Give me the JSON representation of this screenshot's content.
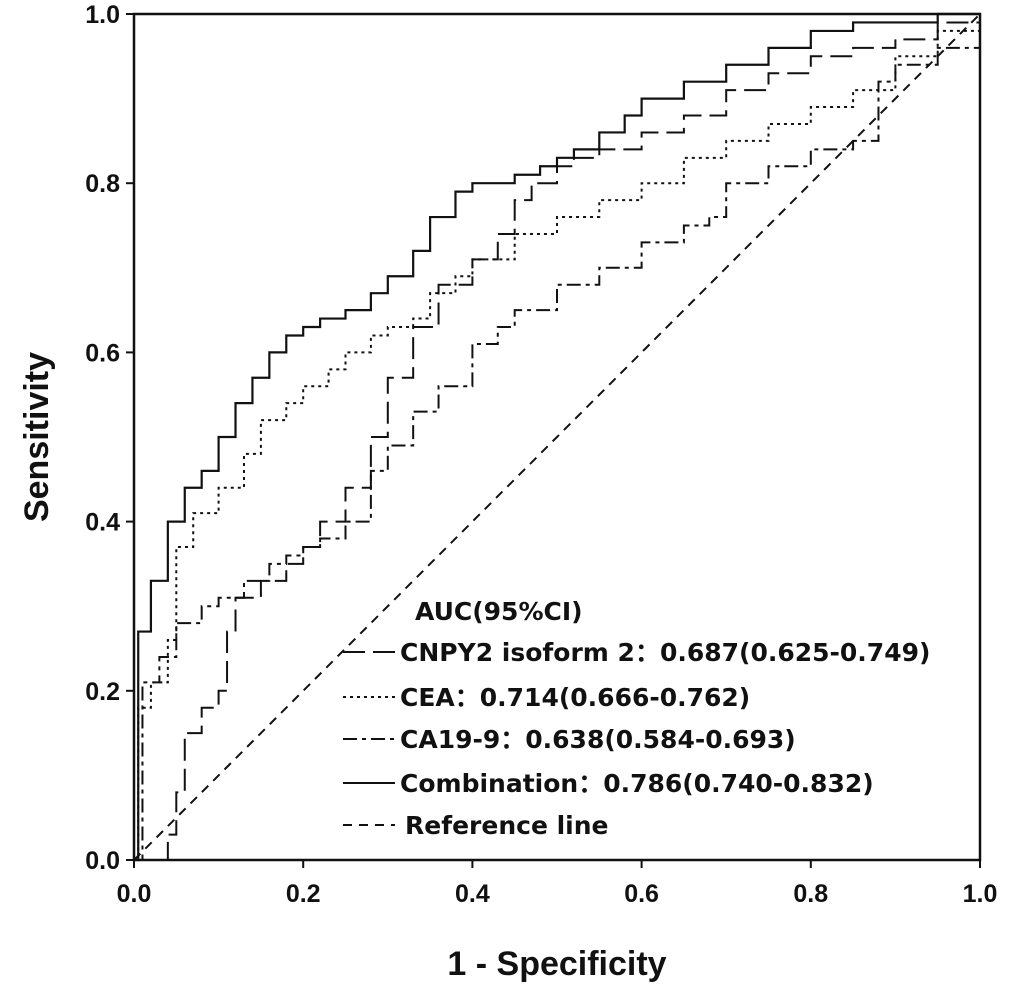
{
  "chart_data": {
    "type": "line",
    "title": "",
    "xlabel": "1 - Specificity",
    "ylabel": "Sensitivity",
    "xlim": [
      0,
      1
    ],
    "ylim": [
      0,
      1
    ],
    "xticks": [
      "0.0",
      "0.2",
      "0.4",
      "0.6",
      "0.8",
      "1.0"
    ],
    "yticks": [
      "0.0",
      "0.2",
      "0.4",
      "0.6",
      "0.8",
      "1.0"
    ],
    "legend": {
      "title": "AUC(95%CI)",
      "placement": "bottom-right",
      "entries": [
        {
          "name": "CNPY2 isoform 2",
          "text": "CNPY2 isoform 2：0.687(0.625-0.749)",
          "style": "long-dash"
        },
        {
          "name": "CEA",
          "text": "CEA：0.714(0.666-0.762)",
          "style": "dotted"
        },
        {
          "name": "CA19-9",
          "text": "CA19-9：0.638(0.584-0.693)",
          "style": "dash-dot"
        },
        {
          "name": "Combination",
          "text": "Combination：0.786(0.740-0.832)",
          "style": "solid"
        },
        {
          "name": "Reference line",
          "text": "Reference line",
          "style": "short-dash"
        }
      ]
    },
    "series": [
      {
        "name": "CNPY2 isoform 2",
        "auc": 0.687,
        "ci": [
          0.625,
          0.749
        ],
        "style": "long-dash",
        "x": [
          0,
          0.04,
          0.05,
          0.06,
          0.08,
          0.1,
          0.11,
          0.12,
          0.15,
          0.18,
          0.2,
          0.22,
          0.25,
          0.28,
          0.3,
          0.33,
          0.36,
          0.4,
          0.43,
          0.45,
          0.47,
          0.5,
          0.52,
          0.55,
          0.6,
          0.65,
          0.7,
          0.75,
          0.8,
          0.85,
          0.9,
          0.95,
          1.0
        ],
        "y": [
          0,
          0.03,
          0.08,
          0.15,
          0.18,
          0.2,
          0.27,
          0.31,
          0.33,
          0.35,
          0.37,
          0.4,
          0.44,
          0.5,
          0.57,
          0.63,
          0.68,
          0.71,
          0.74,
          0.78,
          0.8,
          0.82,
          0.83,
          0.84,
          0.86,
          0.88,
          0.91,
          0.93,
          0.95,
          0.96,
          0.97,
          0.99,
          1.0
        ]
      },
      {
        "name": "CEA",
        "auc": 0.714,
        "ci": [
          0.666,
          0.762
        ],
        "style": "dotted",
        "x": [
          0,
          0.005,
          0.02,
          0.04,
          0.05,
          0.07,
          0.1,
          0.13,
          0.15,
          0.18,
          0.2,
          0.23,
          0.25,
          0.28,
          0.3,
          0.33,
          0.35,
          0.38,
          0.4,
          0.45,
          0.5,
          0.55,
          0.6,
          0.65,
          0.7,
          0.75,
          0.8,
          0.85,
          0.9,
          0.95,
          1.0
        ],
        "y": [
          0,
          0.18,
          0.21,
          0.26,
          0.37,
          0.41,
          0.44,
          0.48,
          0.52,
          0.54,
          0.56,
          0.58,
          0.6,
          0.62,
          0.63,
          0.64,
          0.67,
          0.69,
          0.71,
          0.74,
          0.76,
          0.78,
          0.8,
          0.83,
          0.85,
          0.87,
          0.89,
          0.91,
          0.95,
          0.98,
          1.0
        ]
      },
      {
        "name": "CA19-9",
        "auc": 0.638,
        "ci": [
          0.584,
          0.693
        ],
        "style": "dash-dot",
        "x": [
          0,
          0.01,
          0.03,
          0.05,
          0.08,
          0.1,
          0.13,
          0.16,
          0.18,
          0.2,
          0.22,
          0.25,
          0.28,
          0.3,
          0.33,
          0.36,
          0.4,
          0.43,
          0.45,
          0.5,
          0.55,
          0.6,
          0.65,
          0.68,
          0.7,
          0.75,
          0.8,
          0.85,
          0.88,
          0.9,
          0.95,
          1.0
        ],
        "y": [
          0,
          0.21,
          0.24,
          0.28,
          0.3,
          0.31,
          0.33,
          0.35,
          0.36,
          0.37,
          0.38,
          0.4,
          0.46,
          0.49,
          0.53,
          0.56,
          0.61,
          0.63,
          0.65,
          0.68,
          0.7,
          0.73,
          0.75,
          0.76,
          0.8,
          0.82,
          0.84,
          0.85,
          0.92,
          0.94,
          0.96,
          1.0
        ]
      },
      {
        "name": "Combination",
        "auc": 0.786,
        "ci": [
          0.74,
          0.832
        ],
        "style": "solid",
        "x": [
          0,
          0.005,
          0.02,
          0.04,
          0.06,
          0.08,
          0.1,
          0.12,
          0.14,
          0.16,
          0.18,
          0.2,
          0.22,
          0.25,
          0.28,
          0.3,
          0.33,
          0.35,
          0.38,
          0.4,
          0.42,
          0.45,
          0.48,
          0.5,
          0.52,
          0.55,
          0.58,
          0.6,
          0.65,
          0.7,
          0.75,
          0.8,
          0.85,
          0.9,
          0.95,
          1.0
        ],
        "y": [
          0,
          0.27,
          0.33,
          0.4,
          0.44,
          0.46,
          0.5,
          0.54,
          0.57,
          0.6,
          0.62,
          0.63,
          0.64,
          0.65,
          0.67,
          0.69,
          0.72,
          0.76,
          0.79,
          0.8,
          0.8,
          0.81,
          0.82,
          0.83,
          0.84,
          0.86,
          0.88,
          0.9,
          0.92,
          0.94,
          0.96,
          0.98,
          0.99,
          0.99,
          1.0,
          1.0
        ]
      },
      {
        "name": "Reference line",
        "style": "short-dash",
        "x": [
          0,
          1
        ],
        "y": [
          0,
          1
        ]
      }
    ]
  }
}
